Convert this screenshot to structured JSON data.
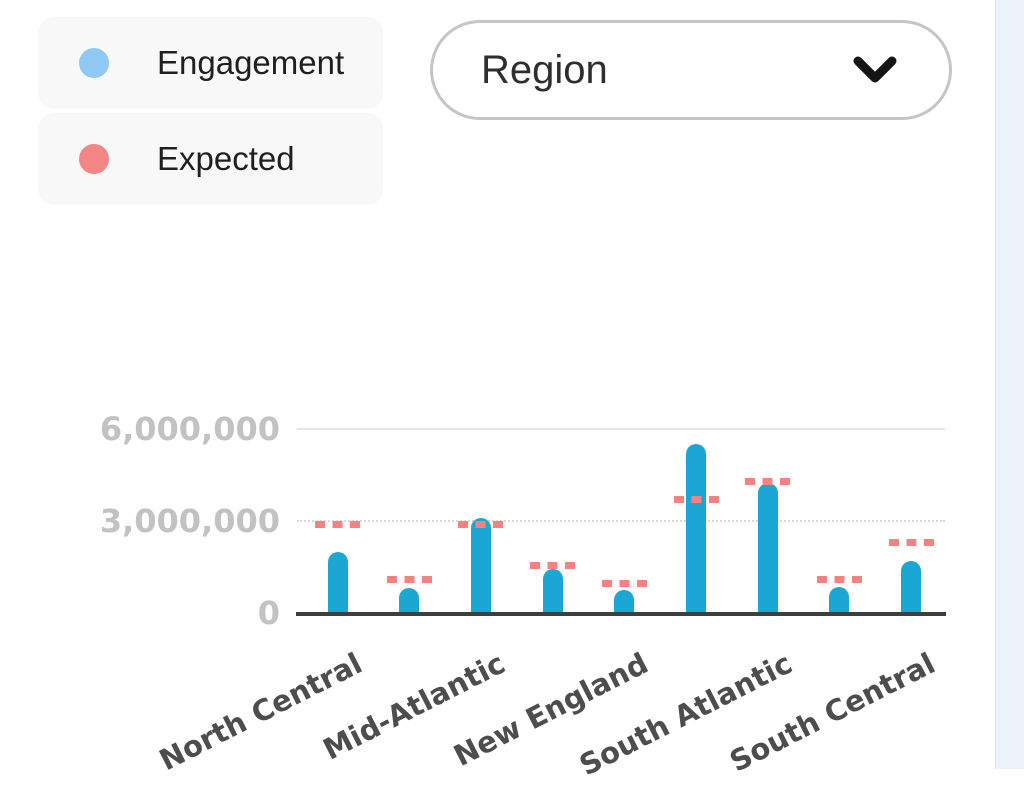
{
  "legend": {
    "items": [
      {
        "label": "Engagement",
        "color": "#8ec9f4"
      },
      {
        "label": "Expected",
        "color": "#f48585"
      }
    ]
  },
  "filter_dropdown": {
    "label": "Region",
    "icon": "chevron-down-icon"
  },
  "chart_data": {
    "type": "bar",
    "subtype": "bars-with-dashed-target-markers",
    "categories": [
      "North Central",
      "",
      "Mid-Atlantic",
      "",
      "New England",
      "",
      "South Atlantic",
      "",
      "South Central"
    ],
    "series": [
      {
        "name": "Engagement",
        "type": "bar",
        "color": "#1aa7d4",
        "values": [
          2000000,
          800000,
          3100000,
          1450000,
          750000,
          5500000,
          4250000,
          850000,
          1700000
        ]
      },
      {
        "name": "Expected",
        "type": "target-marker",
        "color": "#f58181",
        "values": [
          2900000,
          1100000,
          2900000,
          1550000,
          950000,
          3700000,
          4300000,
          1100000,
          2300000
        ]
      }
    ],
    "title": "",
    "xlabel": "",
    "ylabel": "",
    "ylim": [
      0,
      6000000
    ],
    "yticks": [
      {
        "value": 0,
        "label": "0"
      },
      {
        "value": 3000000,
        "label": "3,000,000"
      },
      {
        "value": 6000000,
        "label": "6,000,000"
      }
    ],
    "gridlines": {
      "solid_at": 6000000,
      "dotted_at": 3000000,
      "x_labels_rotation_deg": -27
    },
    "legend_position": "top-left"
  },
  "colors": {
    "bar": "#1aa7d4",
    "target_marker": "#f58181",
    "axis_line": "#3e3e3e",
    "grid_solid": "#e6e6e6",
    "grid_dotted": "#d8d8d8",
    "ytick_text": "#c2c2c2",
    "xtick_text": "#4d4d4d",
    "side_panel": "#edf3f9"
  }
}
